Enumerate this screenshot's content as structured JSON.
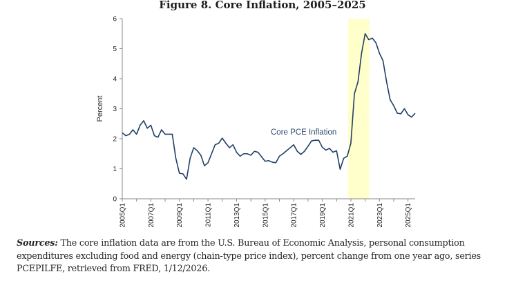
{
  "chart_data": {
    "type": "line",
    "title": "Figure 8. Core Inflation, 2005–2025",
    "xlabel": "",
    "ylabel": "Percent",
    "ylim": [
      0,
      6
    ],
    "yticks": [
      0,
      1,
      2,
      3,
      4,
      5,
      6
    ],
    "x_tick_labels": [
      "2005Q1",
      "2007Q1",
      "2009Q1",
      "2011Q1",
      "2013Q1",
      "2015Q1",
      "2017Q1",
      "2019Q1",
      "2021Q1",
      "2023Q1",
      "2025Q1"
    ],
    "highlight": {
      "start": "2020Q4",
      "end": "2022Q2",
      "color": "#ffffcc"
    },
    "series": [
      {
        "name": "Core PCE Inflation",
        "color": "#1f3e66",
        "x": [
          "2005Q1",
          "2005Q2",
          "2005Q3",
          "2005Q4",
          "2006Q1",
          "2006Q2",
          "2006Q3",
          "2006Q4",
          "2007Q1",
          "2007Q2",
          "2007Q3",
          "2007Q4",
          "2008Q1",
          "2008Q2",
          "2008Q3",
          "2008Q4",
          "2009Q1",
          "2009Q2",
          "2009Q3",
          "2009Q4",
          "2010Q1",
          "2010Q2",
          "2010Q3",
          "2010Q4",
          "2011Q1",
          "2011Q2",
          "2011Q3",
          "2011Q4",
          "2012Q1",
          "2012Q2",
          "2012Q3",
          "2012Q4",
          "2013Q1",
          "2013Q2",
          "2013Q3",
          "2013Q4",
          "2014Q1",
          "2014Q2",
          "2014Q3",
          "2014Q4",
          "2015Q1",
          "2015Q2",
          "2015Q3",
          "2015Q4",
          "2016Q1",
          "2016Q2",
          "2016Q3",
          "2016Q4",
          "2017Q1",
          "2017Q2",
          "2017Q3",
          "2017Q4",
          "2018Q1",
          "2018Q2",
          "2018Q3",
          "2018Q4",
          "2019Q1",
          "2019Q2",
          "2019Q3",
          "2019Q4",
          "2020Q1",
          "2020Q2",
          "2020Q3",
          "2020Q4",
          "2021Q1",
          "2021Q2",
          "2021Q3",
          "2021Q4",
          "2022Q1",
          "2022Q2",
          "2022Q3",
          "2022Q4",
          "2023Q1",
          "2023Q2",
          "2023Q3",
          "2023Q4",
          "2024Q1",
          "2024Q2",
          "2024Q3",
          "2024Q4",
          "2025Q1",
          "2025Q2",
          "2025Q3"
        ],
        "values": [
          2.2,
          2.1,
          2.15,
          2.3,
          2.15,
          2.45,
          2.6,
          2.35,
          2.45,
          2.1,
          2.05,
          2.3,
          2.15,
          2.15,
          2.15,
          1.35,
          0.85,
          0.83,
          0.65,
          1.35,
          1.7,
          1.6,
          1.45,
          1.1,
          1.2,
          1.5,
          1.8,
          1.85,
          2.02,
          1.85,
          1.7,
          1.8,
          1.55,
          1.42,
          1.5,
          1.5,
          1.45,
          1.58,
          1.55,
          1.4,
          1.25,
          1.27,
          1.22,
          1.2,
          1.42,
          1.5,
          1.6,
          1.7,
          1.8,
          1.58,
          1.48,
          1.58,
          1.75,
          1.93,
          1.95,
          1.95,
          1.72,
          1.62,
          1.68,
          1.55,
          1.6,
          0.98,
          1.35,
          1.42,
          1.85,
          3.5,
          3.9,
          4.85,
          5.5,
          5.3,
          5.35,
          5.2,
          4.85,
          4.6,
          3.9,
          3.3,
          3.1,
          2.85,
          2.83,
          3.0,
          2.8,
          2.72,
          2.85
        ]
      }
    ]
  },
  "sources": {
    "label": "Sources:",
    "text": " The core inflation data are from the U.S. Bureau of Economic Analysis, personal consumption expenditures excluding food and energy (chain-type price index), percent change from one year ago, series PCEPILFE, retrieved from FRED, 1/12/2026."
  }
}
